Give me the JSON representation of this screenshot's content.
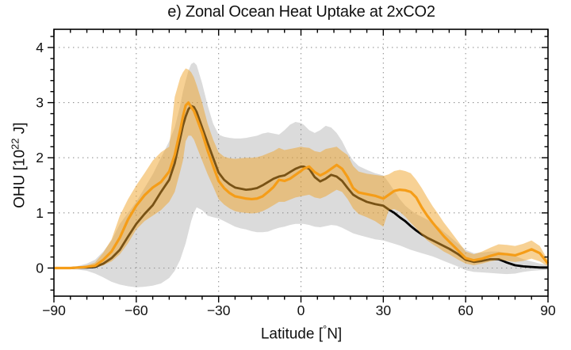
{
  "page": {
    "title": "e) Zonal Ocean Heat Uptake at 2xCO2"
  },
  "axes": {
    "xlabel_pre": "Latitude [",
    "xlabel_deg": "°",
    "xlabel_post": "N]",
    "ylabel_pre": "OHU [10",
    "ylabel_sup": "22",
    "ylabel_post": " J]",
    "x_tick_values": [
      -90,
      -60,
      -30,
      0,
      30,
      60,
      90
    ],
    "x_tick_labels": [
      "−90",
      "−60",
      "−30",
      "0",
      "30",
      "60",
      "90"
    ],
    "y_tick_values": [
      0,
      1,
      2,
      3,
      4
    ],
    "y_tick_labels": [
      "0",
      "1",
      "2",
      "3",
      "4"
    ],
    "x_grid_values": [
      -60,
      -30,
      0,
      30,
      60
    ],
    "y_grid_values": [
      0,
      1,
      2,
      3,
      4
    ],
    "x_minor_step": 6,
    "y_minor_step": 0.2,
    "xlim": [
      -90,
      90
    ],
    "ylim": [
      -0.51,
      4.33
    ],
    "grid_style": "dotted"
  },
  "colors": {
    "background": "#ffffff",
    "axis": "#000000",
    "grid": "#909090",
    "tick_label": "#111111",
    "black_line": "#000000",
    "orange_line": "#F59D18",
    "gray_band": "#DBDBDB",
    "orange_band": "#F0A42A",
    "orange_band_opacity": 0.5
  },
  "chart_data": {
    "type": "line",
    "title": "e) Zonal Ocean Heat Uptake at 2xCO2",
    "xlabel": "Latitude [°N]",
    "ylabel": "OHU [10^22 J]",
    "xlim": [
      -90,
      90
    ],
    "ylim": [
      -0.51,
      4.33
    ],
    "grid": "dotted, at major ticks",
    "legend": "none",
    "x": [
      -90,
      -87,
      -84,
      -81,
      -78,
      -75,
      -72,
      -69,
      -66,
      -63,
      -60,
      -57,
      -54,
      -51,
      -48,
      -46,
      -44,
      -43,
      -42,
      -41,
      -40,
      -39,
      -38,
      -36,
      -34,
      -32,
      -30,
      -28,
      -26,
      -24,
      -22,
      -20,
      -18,
      -16,
      -14,
      -12,
      -10,
      -8,
      -6,
      -4,
      -2,
      0,
      1,
      3,
      5,
      7,
      9,
      11,
      13,
      15,
      17,
      19,
      21,
      24,
      27,
      30,
      32,
      34,
      36,
      38,
      40,
      42,
      44,
      46,
      48,
      50,
      52,
      54,
      57,
      60,
      63,
      66,
      69,
      72,
      75,
      78,
      81,
      84,
      87,
      90
    ],
    "series": [
      {
        "name": "black-mean-line",
        "color": "#000000",
        "values": [
          0.0,
          0.0,
          0.0,
          0.01,
          0.01,
          0.02,
          0.08,
          0.18,
          0.33,
          0.57,
          0.8,
          0.98,
          1.14,
          1.38,
          1.6,
          1.9,
          2.35,
          2.58,
          2.75,
          2.88,
          2.94,
          2.92,
          2.83,
          2.55,
          2.27,
          2.0,
          1.73,
          1.6,
          1.52,
          1.46,
          1.44,
          1.42,
          1.43,
          1.45,
          1.5,
          1.56,
          1.62,
          1.66,
          1.68,
          1.74,
          1.8,
          1.84,
          1.84,
          1.8,
          1.65,
          1.57,
          1.62,
          1.69,
          1.66,
          1.58,
          1.45,
          1.33,
          1.27,
          1.2,
          1.16,
          1.13,
          1.06,
          1.0,
          0.92,
          0.85,
          0.76,
          0.68,
          0.61,
          0.55,
          0.5,
          0.45,
          0.4,
          0.35,
          0.26,
          0.15,
          0.11,
          0.13,
          0.16,
          0.16,
          0.1,
          0.05,
          0.03,
          0.02,
          0.01,
          0.01
        ]
      },
      {
        "name": "orange-mean-line",
        "color": "#F59D18",
        "values": [
          0.0,
          0.0,
          0.0,
          0.01,
          0.02,
          0.04,
          0.15,
          0.3,
          0.55,
          0.88,
          1.13,
          1.32,
          1.46,
          1.56,
          1.75,
          2.05,
          2.5,
          2.75,
          2.95,
          3.0,
          2.92,
          2.85,
          2.72,
          2.45,
          2.13,
          1.85,
          1.58,
          1.45,
          1.36,
          1.3,
          1.28,
          1.26,
          1.25,
          1.26,
          1.3,
          1.38,
          1.47,
          1.6,
          1.58,
          1.62,
          1.69,
          1.76,
          1.8,
          1.84,
          1.74,
          1.68,
          1.73,
          1.8,
          1.87,
          1.8,
          1.65,
          1.45,
          1.37,
          1.34,
          1.31,
          1.26,
          1.33,
          1.4,
          1.42,
          1.41,
          1.38,
          1.28,
          1.1,
          0.95,
          0.82,
          0.7,
          0.58,
          0.48,
          0.33,
          0.18,
          0.14,
          0.17,
          0.22,
          0.26,
          0.25,
          0.23,
          0.28,
          0.34,
          0.27,
          0.08
        ]
      }
    ],
    "bands": [
      {
        "name": "gray-spread-band",
        "color": "#DBDBDB",
        "opacity": 1,
        "lower": [
          -0.01,
          -0.01,
          -0.02,
          -0.03,
          -0.05,
          -0.1,
          -0.17,
          -0.25,
          -0.3,
          -0.33,
          -0.35,
          -0.34,
          -0.32,
          -0.28,
          -0.18,
          -0.05,
          0.15,
          0.3,
          0.45,
          0.65,
          0.85,
          1.0,
          1.1,
          1.05,
          0.95,
          0.92,
          0.9,
          0.85,
          0.8,
          0.75,
          0.72,
          0.7,
          0.67,
          0.65,
          0.65,
          0.66,
          0.7,
          0.73,
          0.75,
          0.78,
          0.8,
          0.8,
          0.8,
          0.78,
          0.75,
          0.74,
          0.76,
          0.78,
          0.77,
          0.73,
          0.68,
          0.63,
          0.6,
          0.56,
          0.52,
          0.5,
          0.47,
          0.44,
          0.41,
          0.37,
          0.33,
          0.3,
          0.27,
          0.24,
          0.21,
          0.17,
          0.13,
          0.09,
          0.03,
          -0.04,
          -0.07,
          -0.08,
          -0.09,
          -0.1,
          -0.11,
          -0.1,
          -0.07,
          -0.05,
          -0.04,
          -0.03
        ],
        "upper": [
          0.01,
          0.01,
          0.02,
          0.04,
          0.08,
          0.15,
          0.3,
          0.5,
          0.8,
          1.0,
          1.2,
          1.45,
          1.7,
          2.0,
          2.3,
          2.55,
          2.95,
          3.2,
          3.4,
          3.58,
          3.7,
          3.73,
          3.68,
          3.35,
          2.95,
          2.62,
          2.42,
          2.38,
          2.36,
          2.35,
          2.35,
          2.36,
          2.38,
          2.4,
          2.44,
          2.46,
          2.44,
          2.42,
          2.5,
          2.6,
          2.65,
          2.63,
          2.6,
          2.5,
          2.45,
          2.5,
          2.58,
          2.55,
          2.45,
          2.3,
          2.1,
          1.95,
          1.85,
          1.78,
          1.72,
          1.68,
          1.55,
          1.4,
          1.25,
          1.13,
          1.05,
          0.98,
          0.93,
          0.88,
          0.82,
          0.75,
          0.66,
          0.58,
          0.45,
          0.33,
          0.27,
          0.28,
          0.3,
          0.3,
          0.27,
          0.22,
          0.16,
          0.12,
          0.08,
          0.06
        ]
      },
      {
        "name": "orange-spread-band",
        "color": "#F0A42A",
        "opacity": 0.5,
        "lower": [
          0.0,
          0.0,
          -0.01,
          -0.01,
          0.0,
          0.01,
          0.05,
          0.12,
          0.25,
          0.45,
          0.7,
          0.85,
          0.95,
          1.05,
          1.2,
          1.38,
          1.75,
          1.95,
          2.3,
          2.4,
          2.4,
          2.33,
          2.2,
          1.95,
          1.7,
          1.48,
          1.25,
          1.15,
          1.08,
          1.03,
          1.01,
          1.0,
          0.99,
          1.0,
          1.03,
          1.08,
          1.14,
          1.2,
          1.2,
          1.24,
          1.28,
          1.3,
          1.31,
          1.33,
          1.28,
          1.26,
          1.3,
          1.36,
          1.42,
          1.38,
          1.25,
          1.08,
          0.98,
          0.92,
          0.85,
          0.75,
          1.05,
          1.07,
          1.02,
          0.93,
          0.82,
          0.72,
          0.6,
          0.5,
          0.43,
          0.37,
          0.3,
          0.25,
          0.16,
          0.08,
          0.05,
          0.08,
          0.12,
          0.15,
          0.13,
          0.11,
          0.13,
          0.17,
          0.12,
          0.03
        ],
        "upper": [
          0.0,
          0.01,
          0.01,
          0.02,
          0.05,
          0.1,
          0.28,
          0.52,
          0.95,
          1.25,
          1.5,
          1.72,
          1.95,
          2.1,
          2.2,
          3.1,
          3.45,
          3.55,
          3.62,
          3.6,
          3.55,
          3.46,
          3.32,
          3.0,
          2.62,
          2.33,
          2.1,
          2.02,
          1.99,
          1.98,
          1.99,
          2.0,
          2.0,
          2.01,
          2.04,
          2.08,
          2.12,
          2.18,
          2.14,
          2.16,
          2.18,
          2.2,
          2.19,
          2.18,
          2.12,
          2.1,
          2.16,
          2.18,
          2.2,
          2.12,
          2.05,
          1.85,
          1.75,
          1.71,
          1.69,
          1.67,
          1.7,
          1.76,
          1.78,
          1.76,
          1.72,
          1.6,
          1.45,
          1.28,
          1.12,
          0.98,
          0.83,
          0.7,
          0.5,
          0.3,
          0.25,
          0.3,
          0.37,
          0.43,
          0.42,
          0.4,
          0.44,
          0.5,
          0.4,
          0.14
        ]
      }
    ]
  }
}
